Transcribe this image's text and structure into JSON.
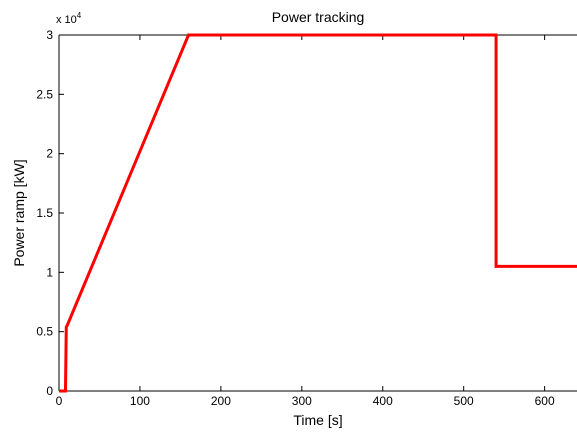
{
  "chart_data": {
    "type": "line",
    "title": "Power tracking",
    "xlabel": "Time [s]",
    "ylabel": "Power ramp [kW]",
    "y_multiplier_label": "x 10",
    "y_multiplier_exponent": "4",
    "xlim": [
      0,
      640
    ],
    "ylim": [
      0,
      30000
    ],
    "xticks": [
      0,
      100,
      200,
      300,
      400,
      500,
      600
    ],
    "xtick_labels": [
      "0",
      "100",
      "200",
      "300",
      "400",
      "500",
      "600"
    ],
    "yticks": [
      0,
      5000,
      10000,
      15000,
      20000,
      25000,
      30000
    ],
    "ytick_labels": [
      "0",
      "0.5",
      "1",
      "1.5",
      "2",
      "2.5",
      "3"
    ],
    "grid": false,
    "series": [
      {
        "color": "#ff0000",
        "x": [
          0,
          8,
          9,
          10,
          160,
          540,
          540,
          640
        ],
        "y": [
          0,
          0,
          5400,
          5500,
          30000,
          30000,
          10500,
          10500
        ]
      }
    ]
  }
}
